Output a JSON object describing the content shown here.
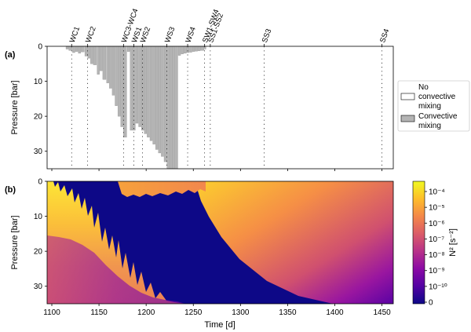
{
  "chart_data": [
    {
      "panel_label": "(a)",
      "type": "bar",
      "ylabel": "Pressure [bar]",
      "xlim": [
        1095,
        1462
      ],
      "ylim": [
        35,
        0
      ],
      "yticks": [
        0,
        10,
        20,
        30
      ],
      "events": [
        {
          "label": "WC1",
          "t": 1121
        },
        {
          "label": "WC2",
          "t": 1138
        },
        {
          "label": "WC3-WC4",
          "t": 1176
        },
        {
          "label": "WS1",
          "t": 1187
        },
        {
          "label": "WS2",
          "t": 1196
        },
        {
          "label": "WS3",
          "t": 1222
        },
        {
          "label": "WS4",
          "t": 1244
        },
        {
          "label": "SW1-SW4",
          "t": 1262
        },
        {
          "label": "SS1-SS2",
          "t": 1268
        },
        {
          "label": "SS3",
          "t": 1325
        },
        {
          "label": "SS4",
          "t": 1450
        }
      ],
      "legend": {
        "position": "right",
        "entries": [
          {
            "label": "No convective mixing",
            "color": "#ffffff"
          },
          {
            "label": "Convective mixing",
            "color": "#b4b4b4"
          }
        ]
      },
      "mixing_depth": {
        "x": [
          1115,
          1118,
          1122,
          1125,
          1128,
          1131,
          1135,
          1138,
          1141,
          1144,
          1148,
          1151,
          1154,
          1158,
          1161,
          1164,
          1167,
          1170,
          1173,
          1176,
          1180,
          1183,
          1186,
          1189,
          1192,
          1195,
          1198,
          1201,
          1204,
          1207,
          1210,
          1213,
          1216,
          1219,
          1222,
          1225,
          1228,
          1231,
          1234,
          1237,
          1240,
          1243,
          1246,
          1249,
          1252,
          1255,
          1258,
          1262
        ],
        "depth": [
          0.8,
          1.2,
          1.8,
          1.5,
          2.0,
          1.6,
          2.8,
          3.4,
          5.0,
          5.3,
          8.0,
          7.0,
          9.5,
          10.5,
          12.0,
          14.0,
          17.0,
          20.0,
          23.0,
          26.0,
          1.5,
          24.0,
          24.0,
          22.0,
          23.0,
          24.0,
          25.0,
          26.0,
          27.0,
          28.0,
          29.5,
          30.5,
          31.5,
          33.0,
          35.0,
          35.0,
          35.0,
          35.0,
          2.6,
          2.2,
          2.0,
          1.8,
          1.7,
          1.5,
          1.4,
          1.3,
          1.2,
          0.8
        ]
      }
    },
    {
      "panel_label": "(b)",
      "type": "heatmap",
      "xlabel": "Time [d]",
      "ylabel": "Pressure [bar]",
      "xlim": [
        1095,
        1462
      ],
      "ylim": [
        35,
        0
      ],
      "xticks": [
        1100,
        1150,
        1200,
        1250,
        1300,
        1350,
        1400,
        1450
      ],
      "yticks": [
        0,
        10,
        20,
        30
      ],
      "colorbar": {
        "label": "N² [s⁻²]",
        "scale": "log",
        "ticks": [
          "10⁻⁴",
          "10⁻⁵",
          "10⁻⁶",
          "10⁻⁷",
          "10⁻⁸",
          "10⁻⁹",
          "10⁻¹⁰",
          "0"
        ],
        "colors": [
          "#0d0887",
          "#5302a3",
          "#8b0aa5",
          "#b83289",
          "#db5c68",
          "#f48849",
          "#febd2a",
          "#f0f921"
        ]
      }
    }
  ]
}
